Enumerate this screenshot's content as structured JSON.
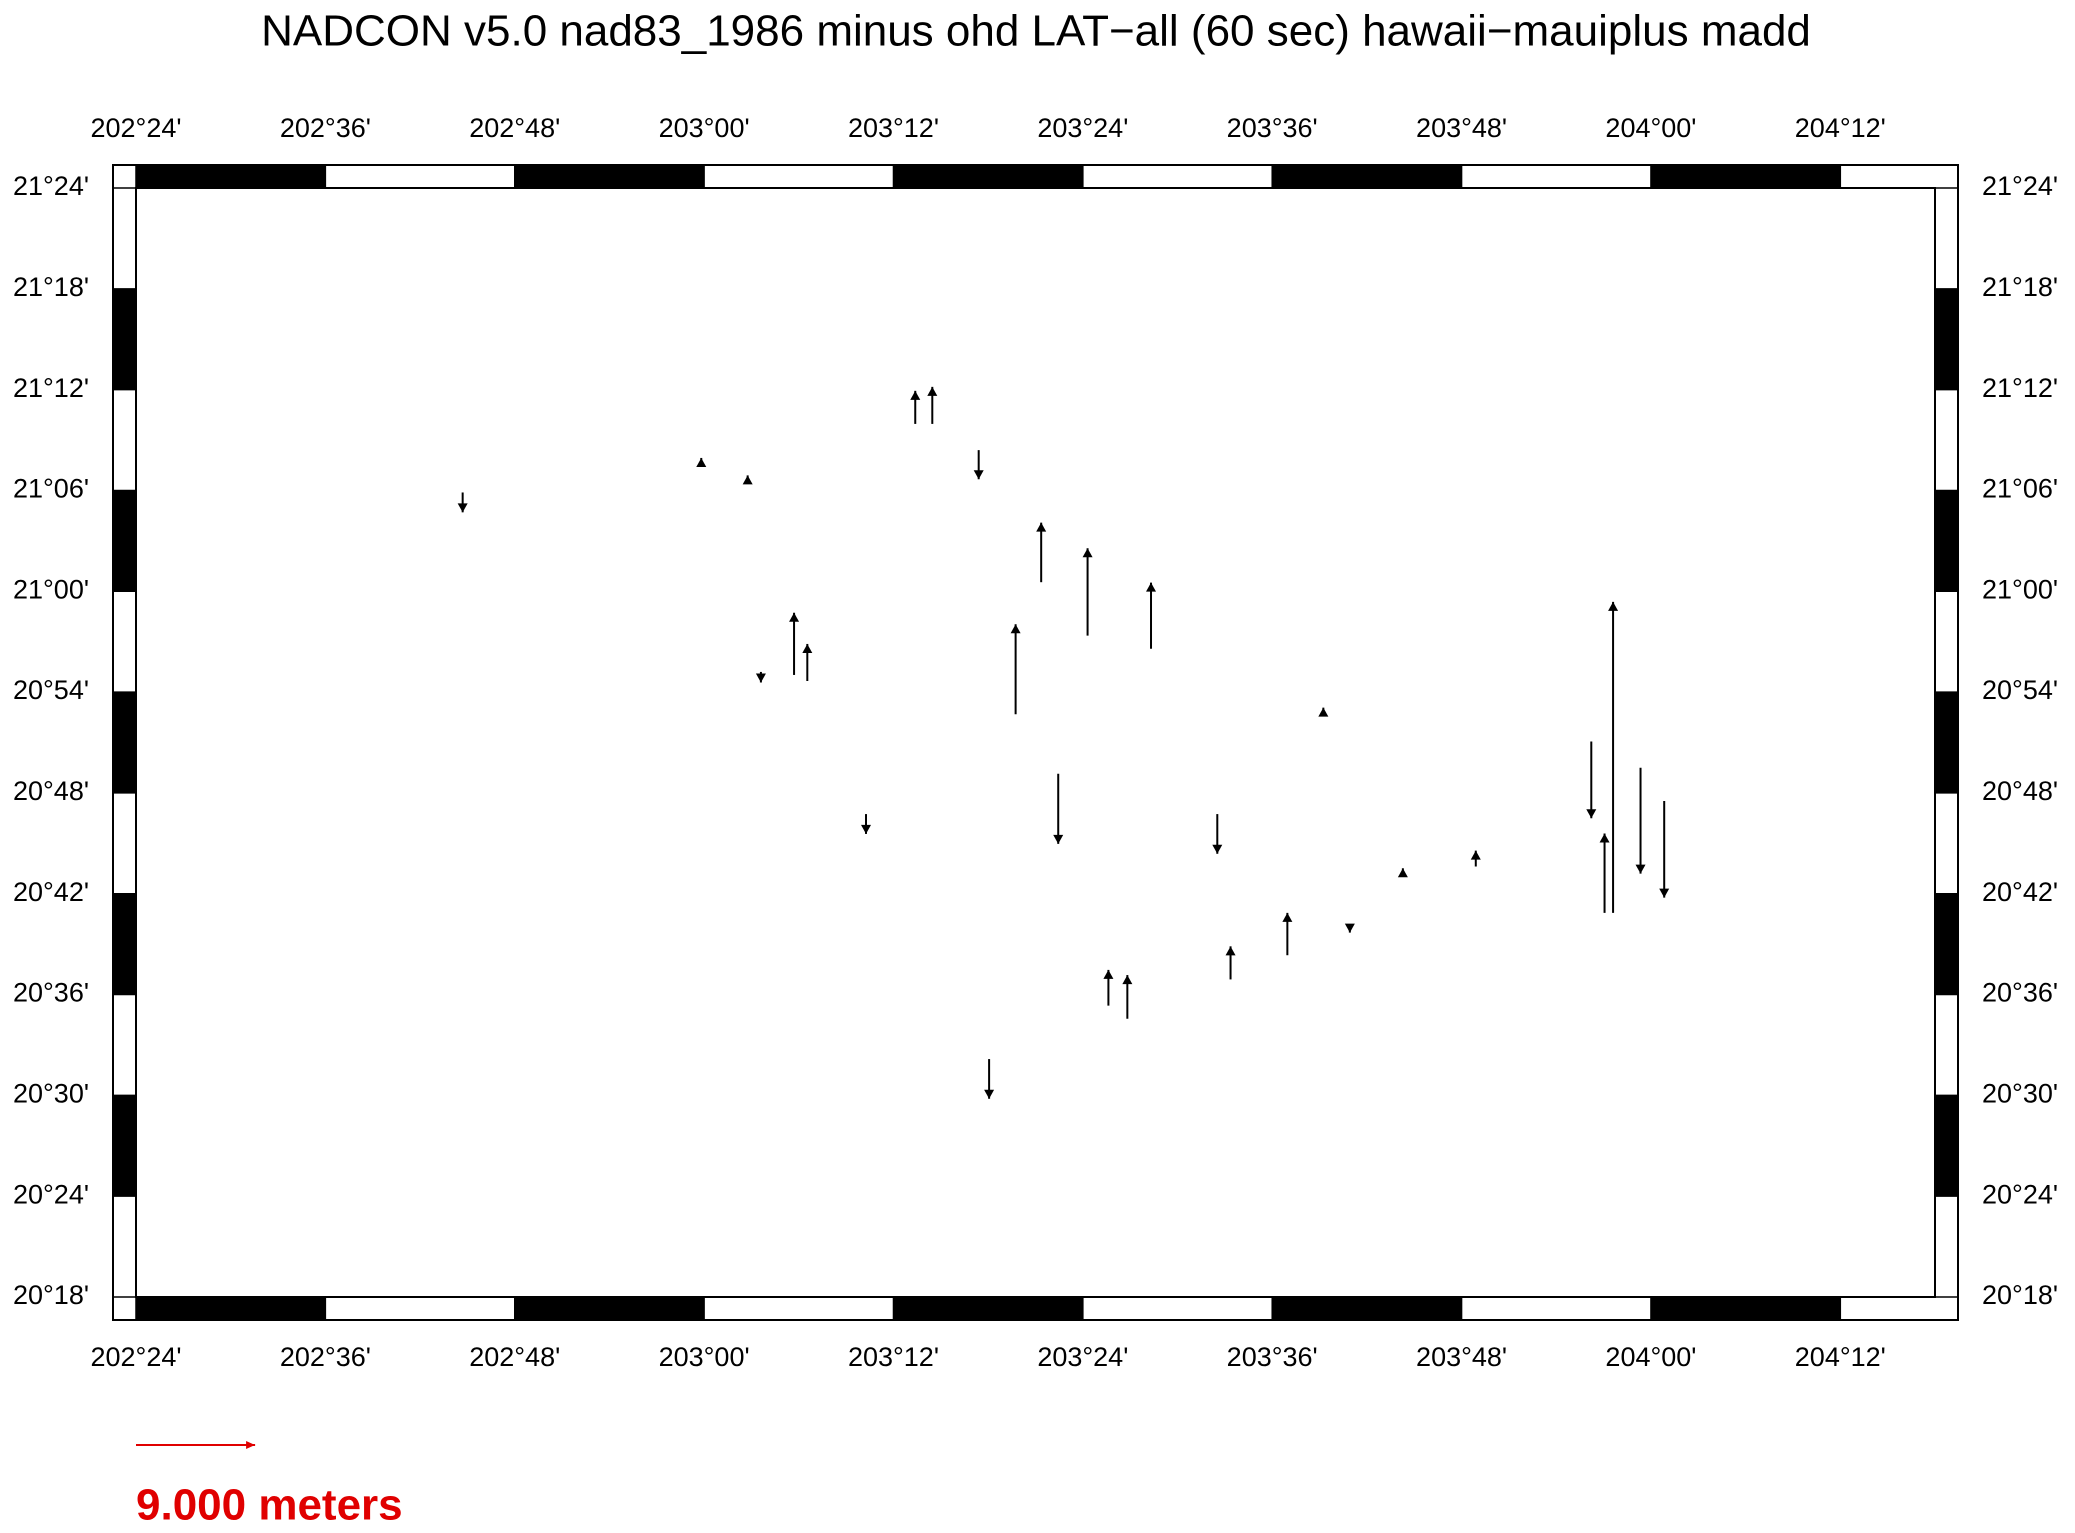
{
  "map": {
    "title": "NADCON v5.0 nad83_1986 minus ohd LAT−all (60 sec) hawaii−mauiplus madd",
    "xlim": [
      202.4,
      204.3
    ],
    "ylim": [
      20.3,
      21.4
    ],
    "xticks": [
      {
        "value": 202.4,
        "label": "202°24'"
      },
      {
        "value": 202.6,
        "label": "202°36'"
      },
      {
        "value": 202.8,
        "label": "202°48'"
      },
      {
        "value": 203.0,
        "label": "203°00'"
      },
      {
        "value": 203.2,
        "label": "203°12'"
      },
      {
        "value": 203.4,
        "label": "203°24'"
      },
      {
        "value": 203.6,
        "label": "203°36'"
      },
      {
        "value": 203.8,
        "label": "203°48'"
      },
      {
        "value": 204.0,
        "label": "204°00'"
      },
      {
        "value": 204.2,
        "label": "204°12'"
      }
    ],
    "yticks": [
      {
        "value": 20.3,
        "label": "20°18'"
      },
      {
        "value": 20.4,
        "label": "20°24'"
      },
      {
        "value": 20.5,
        "label": "20°30'"
      },
      {
        "value": 20.6,
        "label": "20°36'"
      },
      {
        "value": 20.7,
        "label": "20°42'"
      },
      {
        "value": 20.8,
        "label": "20°48'"
      },
      {
        "value": 20.9,
        "label": "20°54'"
      },
      {
        "value": 21.0,
        "label": "21°00'"
      },
      {
        "value": 21.1,
        "label": "21°06'"
      },
      {
        "value": 21.2,
        "label": "21°12'"
      },
      {
        "value": 21.3,
        "label": "21°18'"
      },
      {
        "value": 21.4,
        "label": "21°24'"
      }
    ],
    "stations": [
      {
        "lon": 203.96,
        "lat": 20.681,
        "dlat": 23.5
      },
      {
        "lon": 203.356,
        "lat": 21.009,
        "dlat": 4.5
      },
      {
        "lon": 203.374,
        "lat": 20.819,
        "dlat": -5.3
      },
      {
        "lon": 203.937,
        "lat": 20.851,
        "dlat": -5.8
      },
      {
        "lon": 203.989,
        "lat": 20.825,
        "dlat": -8
      },
      {
        "lon": 204.014,
        "lat": 20.792,
        "dlat": -7.3
      },
      {
        "lon": 203.241,
        "lat": 21.166,
        "dlat": 2.8
      },
      {
        "lon": 203.223,
        "lat": 21.166,
        "dlat": 2.5
      },
      {
        "lon": 203.29,
        "lat": 21.14,
        "dlat": -2.2
      },
      {
        "lon": 203.109,
        "lat": 20.911,
        "dlat": 2.8
      },
      {
        "lon": 203.095,
        "lat": 20.917,
        "dlat": 4.7
      },
      {
        "lon": 203.329,
        "lat": 20.878,
        "dlat": 6.8
      },
      {
        "lon": 203.405,
        "lat": 20.956,
        "dlat": 6.6
      },
      {
        "lon": 203.472,
        "lat": 20.943,
        "dlat": 5
      },
      {
        "lon": 203.301,
        "lat": 20.536,
        "dlat": -3
      },
      {
        "lon": 203.427,
        "lat": 20.589,
        "dlat": 2.7
      },
      {
        "lon": 203.447,
        "lat": 20.576,
        "dlat": 3.3
      },
      {
        "lon": 203.616,
        "lat": 20.639,
        "dlat": 3.2
      },
      {
        "lon": 203.542,
        "lat": 20.779,
        "dlat": -3
      },
      {
        "lon": 203.951,
        "lat": 20.681,
        "dlat": 6
      },
      {
        "lon": 202.745,
        "lat": 21.098,
        "dlat": -1.5
      },
      {
        "lon": 203.046,
        "lat": 21.111,
        "dlat": 0.3
      },
      {
        "lon": 202.997,
        "lat": 21.127,
        "dlat": 0.4
      },
      {
        "lon": 203.06,
        "lat": 20.92,
        "dlat": -0.8
      },
      {
        "lon": 203.171,
        "lat": 20.779,
        "dlat": -1.5
      },
      {
        "lon": 203.654,
        "lat": 20.878,
        "dlat": 0.5
      },
      {
        "lon": 203.738,
        "lat": 20.72,
        "dlat": 0.4
      },
      {
        "lon": 203.815,
        "lat": 20.727,
        "dlat": 1.2
      },
      {
        "lon": 203.682,
        "lat": 20.668,
        "dlat": -0.5
      },
      {
        "lon": 203.556,
        "lat": 20.615,
        "dlat": 2.5
      }
    ],
    "scale": {
      "value": 9,
      "label": "9.000 meters",
      "color": "#e00000"
    }
  }
}
